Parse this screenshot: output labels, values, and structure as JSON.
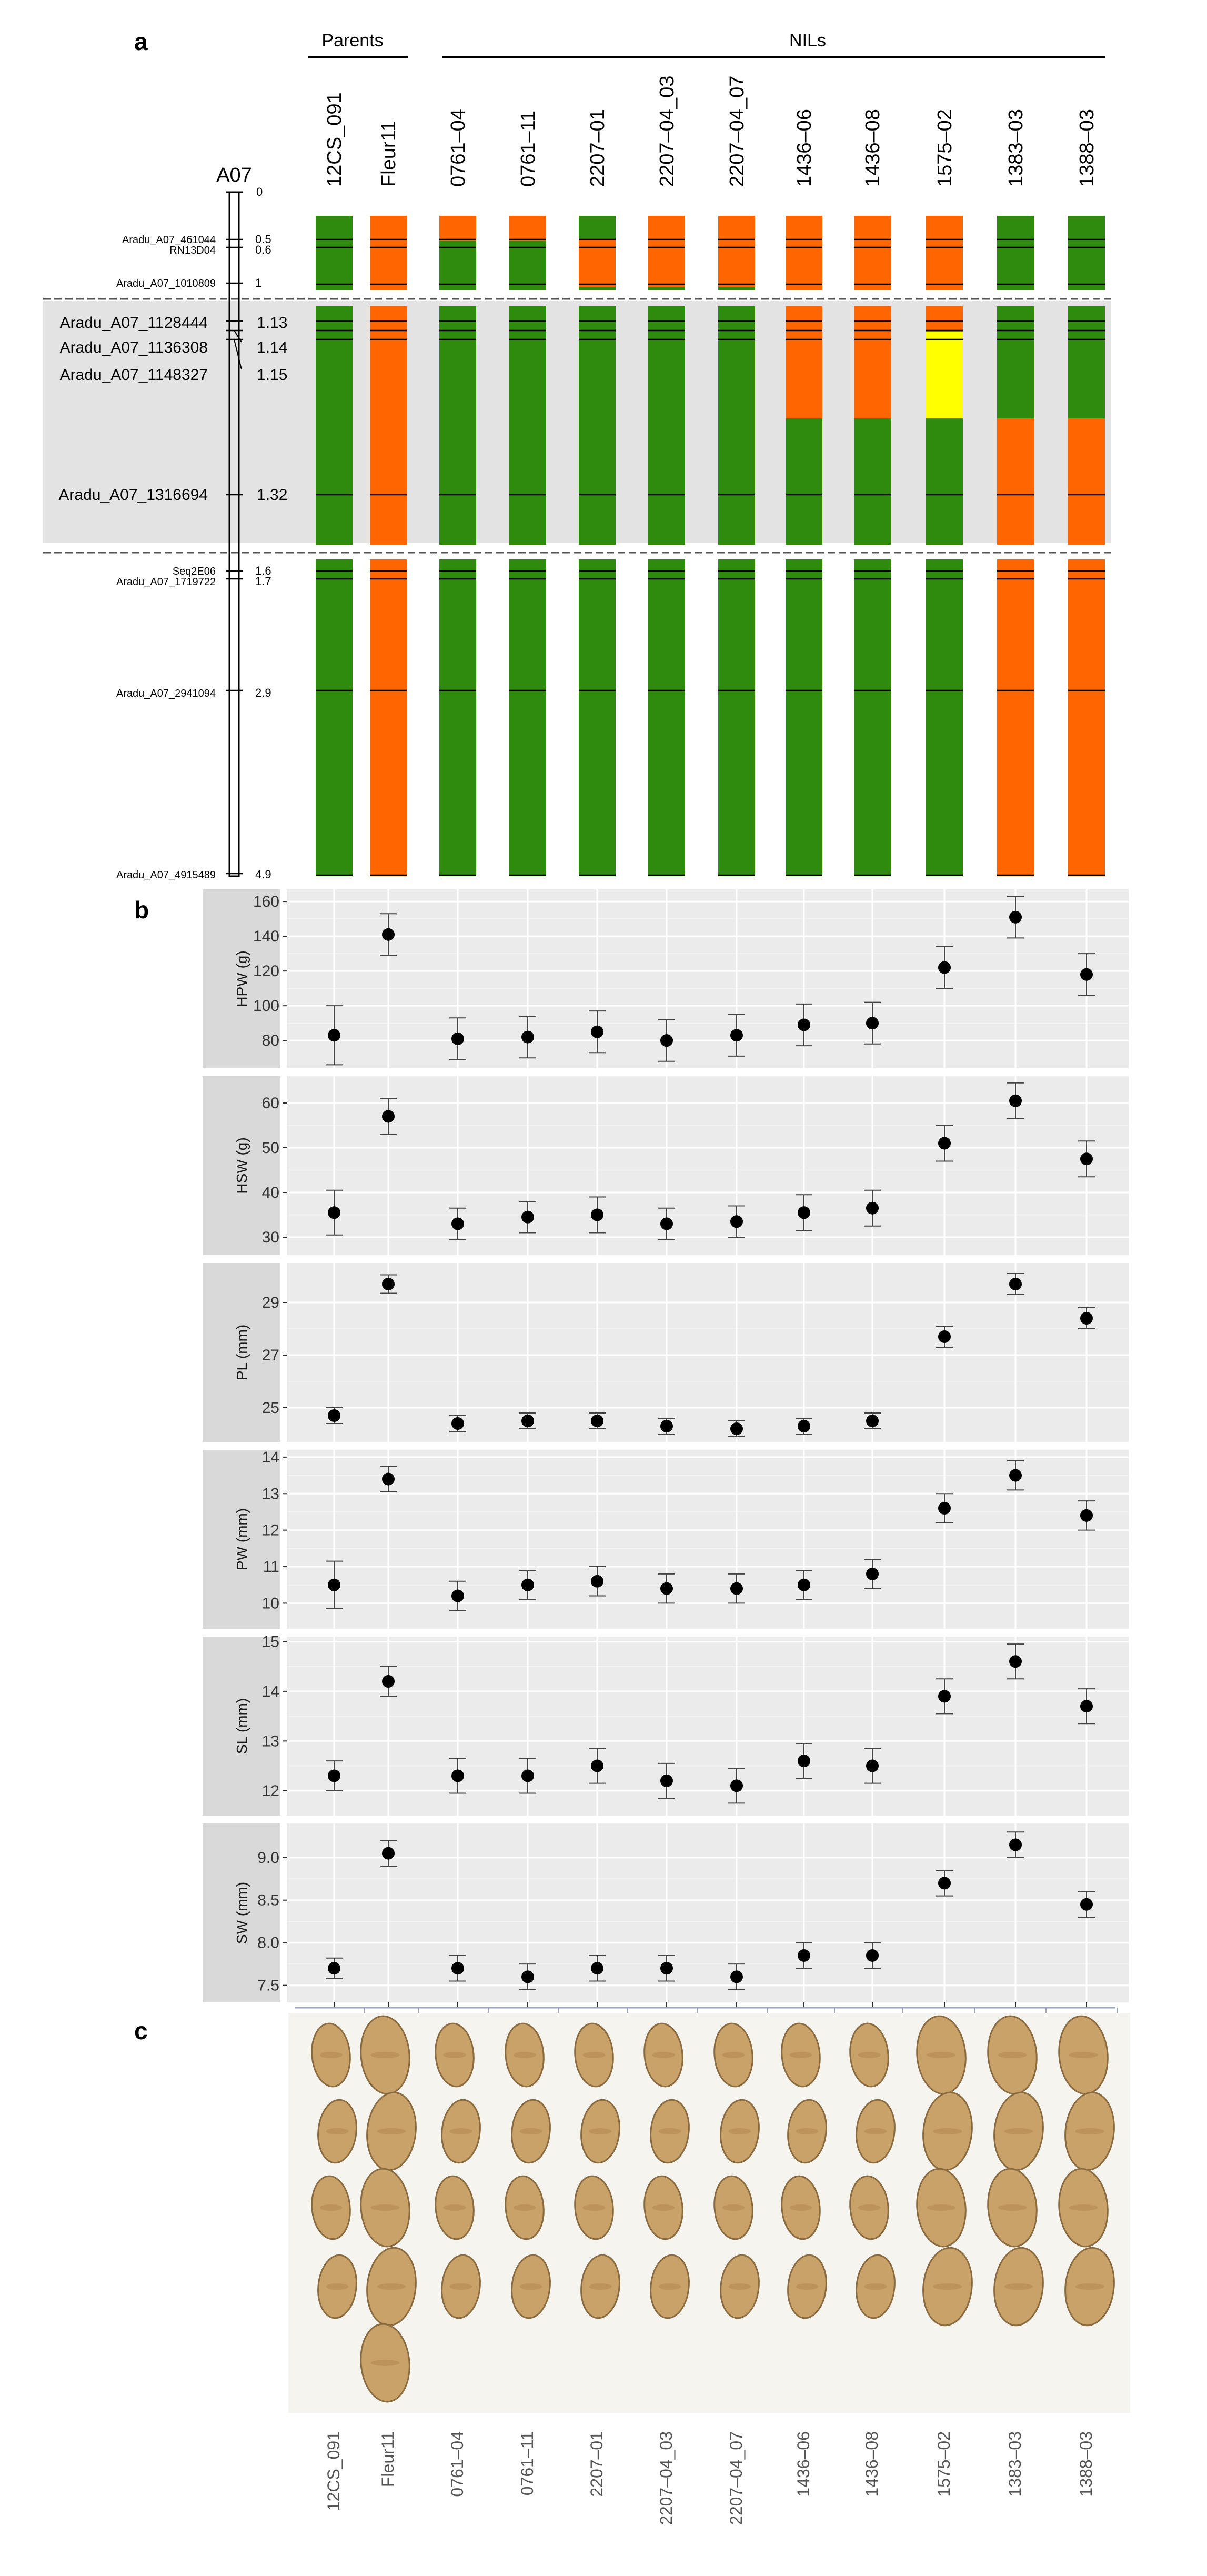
{
  "panel_labels": {
    "a": "a",
    "b": "b",
    "c": "c"
  },
  "panel_a": {
    "group_parents": "Parents",
    "group_nils": "NILs",
    "chromosome": "A07",
    "genotypes": [
      "12CS_091",
      "Fleur11",
      "0761–04",
      "0761–11",
      "2207–01",
      "2207–04_03",
      "2207–04_07",
      "1436–06",
      "1436–08",
      "1575–02",
      "1383–03",
      "1388–03"
    ],
    "markers_small": [
      {
        "name": "Aradu_A07_461044",
        "pos": "0.5"
      },
      {
        "name": "RN13D04",
        "pos": "0.6"
      },
      {
        "name": "Aradu_A07_1010809",
        "pos": "1"
      },
      {
        "name": "Seq2E06",
        "pos": "1.6"
      },
      {
        "name": "Aradu_A07_1719722",
        "pos": "1.7"
      },
      {
        "name": "Aradu_A07_2941094",
        "pos": "2.9"
      },
      {
        "name": "Aradu_A07_4915489",
        "pos": "4.9"
      }
    ],
    "markers_zoom": [
      {
        "name": "Aradu_A07_1128444",
        "pos": "1.13"
      },
      {
        "name": "Aradu_A07_1136308",
        "pos": "1.14"
      },
      {
        "name": "Aradu_A07_1148327",
        "pos": "1.15"
      },
      {
        "name": "Aradu_A07_1316694",
        "pos": "1.32"
      }
    ],
    "scale_top": "0",
    "colors": {
      "parent1": "#2e8b0e",
      "parent2": "#ff6600",
      "het": "#ffff00",
      "zoom_bg": "#e3e3e3"
    }
  },
  "chart_data": [
    {
      "type": "scatter",
      "ylabel": "HPW (g)",
      "yticks": [
        80,
        100,
        120,
        140,
        160
      ],
      "ylim": [
        64,
        167
      ],
      "x": [
        "12CS_091",
        "Fleur11",
        "0761–04",
        "0761–11",
        "2207–01",
        "2207–04_03",
        "2207–04_07",
        "1436–06",
        "1436–08",
        "1575–02",
        "1383–03",
        "1388–03"
      ],
      "values": [
        83,
        141,
        81,
        82,
        85,
        80,
        83,
        89,
        90,
        122,
        151,
        118
      ],
      "errors": [
        17,
        12,
        12,
        12,
        12,
        12,
        12,
        12,
        12,
        12,
        12,
        12
      ]
    },
    {
      "type": "scatter",
      "ylabel": "HSW (g)",
      "yticks": [
        30,
        40,
        50,
        60
      ],
      "ylim": [
        26,
        66
      ],
      "x": [
        "12CS_091",
        "Fleur11",
        "0761–04",
        "0761–11",
        "2207–01",
        "2207–04_03",
        "2207–04_07",
        "1436–06",
        "1436–08",
        "1575–02",
        "1383–03",
        "1388–03"
      ],
      "values": [
        35.5,
        57,
        33,
        34.5,
        35,
        33,
        33.5,
        35.5,
        36.5,
        51,
        60.5,
        47.5
      ],
      "errors": [
        5,
        4,
        3.5,
        3.5,
        4,
        3.5,
        3.5,
        4,
        4,
        4,
        4,
        4
      ]
    },
    {
      "type": "scatter",
      "ylabel": "PL (mm)",
      "yticks": [
        25,
        27,
        29
      ],
      "ylim": [
        23.7,
        30.5
      ],
      "x": [
        "12CS_091",
        "Fleur11",
        "0761–04",
        "0761–11",
        "2207–01",
        "2207–04_03",
        "2207–04_07",
        "1436–06",
        "1436–08",
        "1575–02",
        "1383–03",
        "1388–03"
      ],
      "values": [
        24.7,
        29.7,
        24.4,
        24.5,
        24.5,
        24.3,
        24.2,
        24.3,
        24.5,
        27.7,
        29.7,
        28.4
      ],
      "errors": [
        0.3,
        0.35,
        0.3,
        0.3,
        0.3,
        0.3,
        0.3,
        0.3,
        0.3,
        0.4,
        0.4,
        0.4
      ]
    },
    {
      "type": "scatter",
      "ylabel": "PW (mm)",
      "yticks": [
        10,
        11,
        12,
        13,
        14
      ],
      "ylim": [
        9.3,
        14.2
      ],
      "x": [
        "12CS_091",
        "Fleur11",
        "0761–04",
        "0761–11",
        "2207–01",
        "2207–04_03",
        "2207–04_07",
        "1436–06",
        "1436–08",
        "1575–02",
        "1383–03",
        "1388–03"
      ],
      "values": [
        10.5,
        13.4,
        10.2,
        10.5,
        10.6,
        10.4,
        10.4,
        10.5,
        10.8,
        12.6,
        13.5,
        12.4
      ],
      "errors": [
        0.65,
        0.35,
        0.4,
        0.4,
        0.4,
        0.4,
        0.4,
        0.4,
        0.4,
        0.4,
        0.4,
        0.4
      ]
    },
    {
      "type": "scatter",
      "ylabel": "SL (mm)",
      "yticks": [
        12,
        13,
        14,
        15
      ],
      "ylim": [
        11.5,
        15.1
      ],
      "x": [
        "12CS_091",
        "Fleur11",
        "0761–04",
        "0761–11",
        "2207–01",
        "2207–04_03",
        "2207–04_07",
        "1436–06",
        "1436–08",
        "1575–02",
        "1383–03",
        "1388–03"
      ],
      "values": [
        12.3,
        14.2,
        12.3,
        12.3,
        12.5,
        12.2,
        12.1,
        12.6,
        12.5,
        13.9,
        14.6,
        13.7
      ],
      "errors": [
        0.3,
        0.3,
        0.35,
        0.35,
        0.35,
        0.35,
        0.35,
        0.35,
        0.35,
        0.35,
        0.35,
        0.35
      ]
    },
    {
      "type": "scatter",
      "ylabel": "SW (mm)",
      "yticks": [
        7.5,
        8.0,
        8.5,
        9.0
      ],
      "ylim": [
        7.3,
        9.4
      ],
      "x": [
        "12CS_091",
        "Fleur11",
        "0761–04",
        "0761–11",
        "2207–01",
        "2207–04_03",
        "2207–04_07",
        "1436–06",
        "1436–08",
        "1575–02",
        "1383–03",
        "1388–03"
      ],
      "values": [
        7.7,
        9.05,
        7.7,
        7.6,
        7.7,
        7.7,
        7.6,
        7.85,
        7.85,
        8.7,
        9.15,
        8.45
      ],
      "errors": [
        0.12,
        0.15,
        0.15,
        0.15,
        0.15,
        0.15,
        0.15,
        0.15,
        0.15,
        0.15,
        0.15,
        0.15
      ]
    }
  ],
  "panel_c": {
    "labels": [
      "12CS_091",
      "Fleur11",
      "0761–04",
      "0761–11",
      "2207–01",
      "2207–04_03",
      "2207–04_07",
      "1436–06",
      "1436–08",
      "1575–02",
      "1383–03",
      "1388–03"
    ],
    "pods_per_column": [
      4,
      5,
      4,
      4,
      4,
      4,
      4,
      4,
      4,
      4,
      4,
      4
    ],
    "pod_color": "#c9a26a",
    "background": "#f5f4ef"
  }
}
